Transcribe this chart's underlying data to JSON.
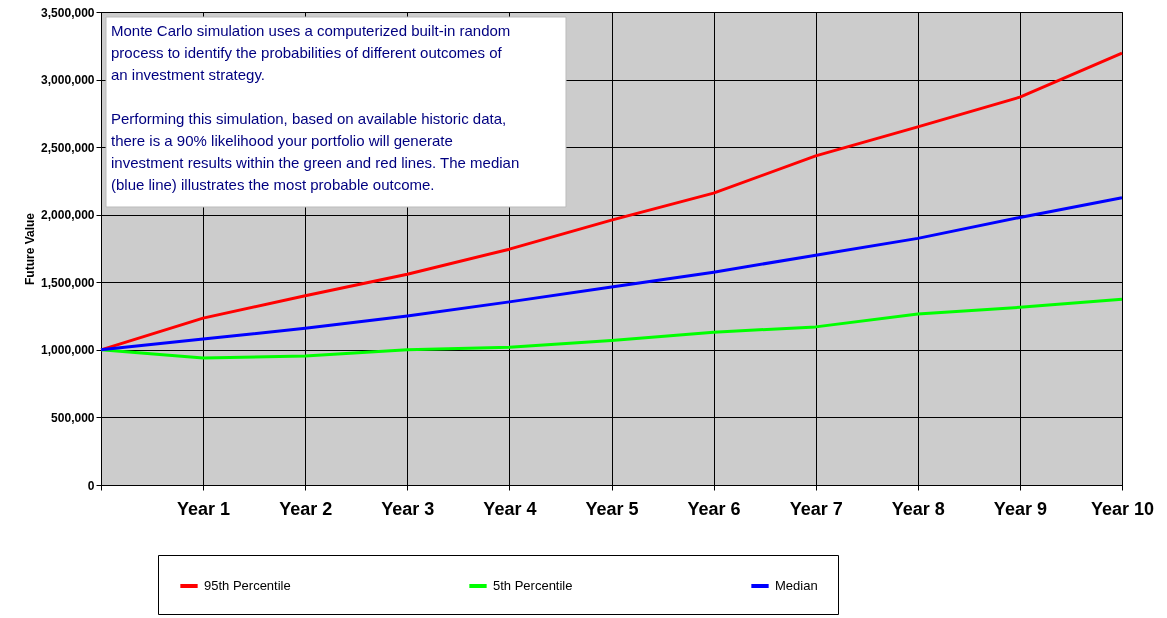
{
  "chart_data": {
    "type": "line",
    "ylabel": "Future Value",
    "categories": [
      null,
      "Year 1",
      "Year 2",
      "Year 3",
      "Year 4",
      "Year 5",
      "Year 6",
      "Year 7",
      "Year 8",
      "Year 9",
      "Year 10"
    ],
    "series": [
      {
        "name": "95th Percentile",
        "color": "#ff0000",
        "values": [
          1000000,
          1235000,
          1400000,
          1560000,
          1745000,
          1960000,
          2160000,
          2435000,
          2650000,
          2870000,
          3195000
        ]
      },
      {
        "name": "5th Percentile",
        "color": "#00ff00",
        "values": [
          1000000,
          940000,
          955000,
          1000000,
          1020000,
          1070000,
          1130000,
          1170000,
          1265000,
          1315000,
          1375000
        ]
      },
      {
        "name": "Median",
        "color": "#0000ff",
        "values": [
          1000000,
          1080000,
          1160000,
          1250000,
          1355000,
          1465000,
          1575000,
          1700000,
          1825000,
          1980000,
          2125000
        ]
      }
    ],
    "ylim": [
      0,
      3500000
    ],
    "yticks": [
      0,
      {
        "value": 500000,
        "label": "500,000"
      },
      {
        "value": 1000000,
        "label": "1,000,000"
      },
      {
        "value": 1500000,
        "label": "1,500,000"
      },
      {
        "value": 2000000,
        "label": "2,000,000"
      },
      {
        "value": 2500000,
        "label": "2,500,000"
      },
      {
        "value": 3000000,
        "label": "3,000,000"
      },
      {
        "value": 3500000,
        "label": "3,500,000"
      }
    ],
    "grid": true,
    "legend": "bottom",
    "marker": "none",
    "line_style": "solid",
    "annotations": [
      "Monte Carlo simulation uses a computerized built-in random process to identify the probabilities of different outcomes of an investment strategy.",
      "Performing this simulation, based on available historic data, there is a 90% likelihood your portfolio will generate investment results within the green and red lines. The median (blue line) illustrates the most probable outcome."
    ]
  }
}
